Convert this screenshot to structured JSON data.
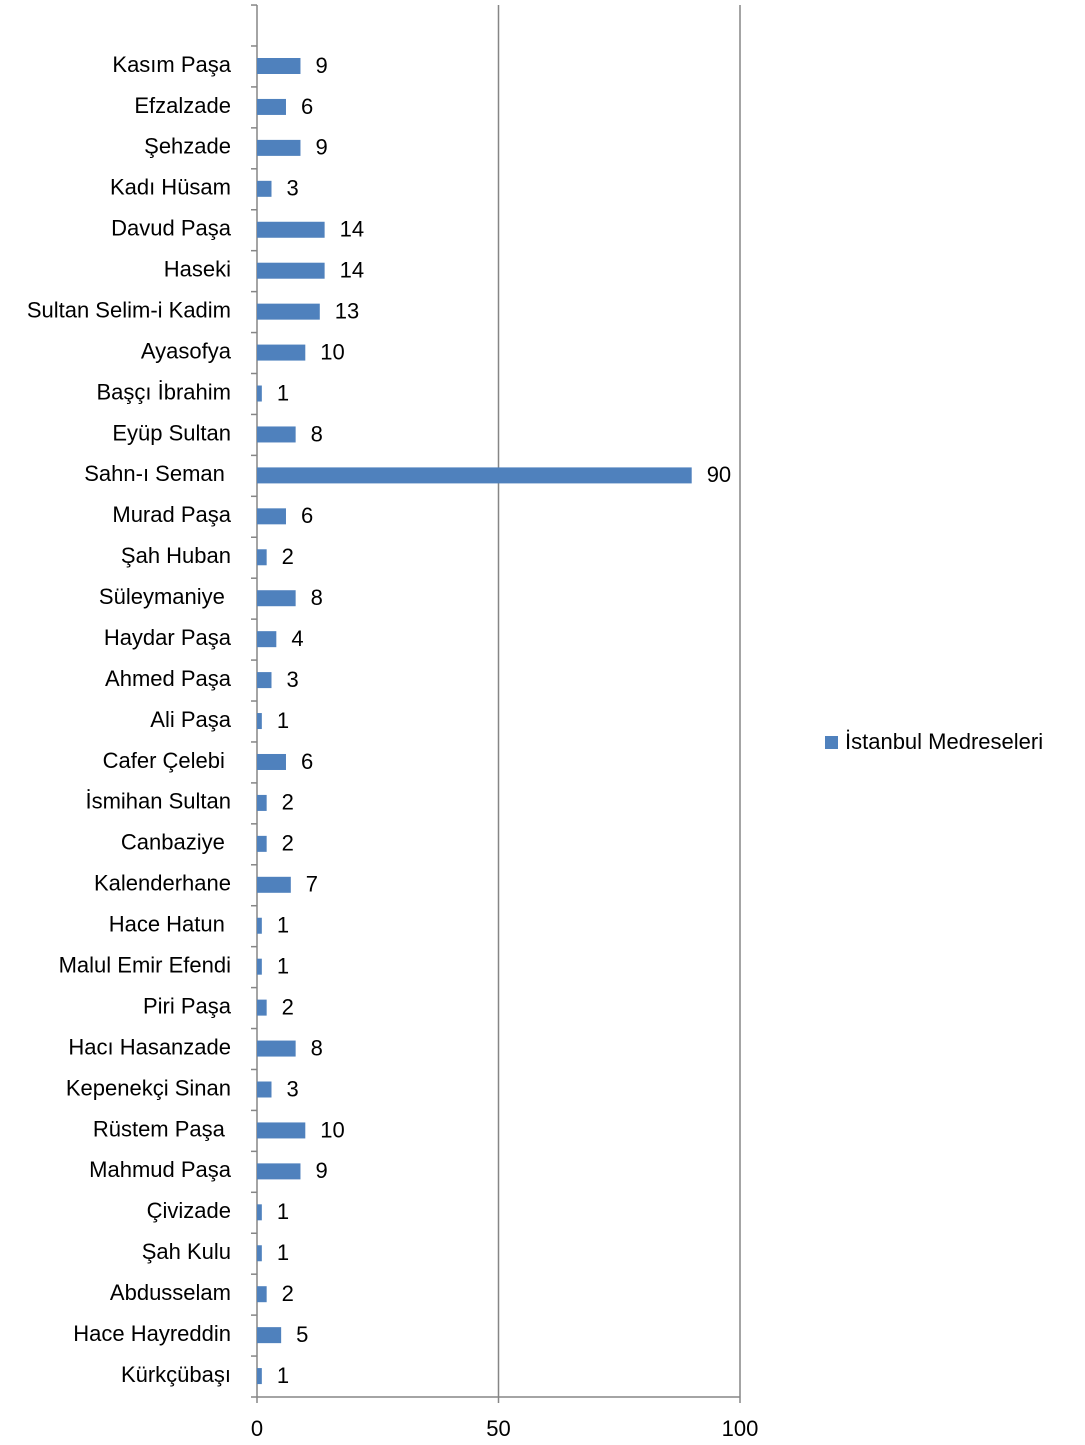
{
  "chart_data": {
    "type": "bar",
    "orientation": "horizontal",
    "categories": [
      "Kasım Paşa",
      "Efzalzade",
      "Şehzade",
      "Kadı Hüsam",
      "Davud Paşa",
      "Haseki",
      "Sultan Selim-i Kadim",
      "Ayasofya",
      "Başçı İbrahim",
      "Eyüp Sultan",
      "Sahn-ı Seman ",
      "Murad Paşa",
      "Şah Huban",
      "Süleymaniye ",
      "Haydar Paşa",
      "Ahmed Paşa",
      "Ali Paşa",
      "Cafer Çelebi ",
      "İsmihan Sultan",
      "Canbaziye ",
      "Kalenderhane",
      "Hace Hatun ",
      "Malul Emir Efendi",
      "Piri Paşa",
      "Hacı Hasanzade",
      "Kepenekçi Sinan",
      "Rüstem Paşa ",
      "Mahmud Paşa",
      "Çivizade",
      "Şah Kulu",
      "Abdusselam",
      "Hace Hayreddin",
      "Kürkçübaşı"
    ],
    "series": [
      {
        "name": "İstanbul Medreseleri",
        "color": "#4f81bd",
        "values": [
          9,
          6,
          9,
          3,
          14,
          14,
          13,
          10,
          1,
          8,
          90,
          6,
          2,
          8,
          4,
          3,
          1,
          6,
          2,
          2,
          7,
          1,
          1,
          2,
          8,
          3,
          10,
          9,
          1,
          1,
          2,
          5,
          1
        ]
      }
    ],
    "xlim": [
      0,
      100
    ],
    "xticks": [
      0,
      50,
      100
    ],
    "grid": true,
    "legend": "right"
  }
}
